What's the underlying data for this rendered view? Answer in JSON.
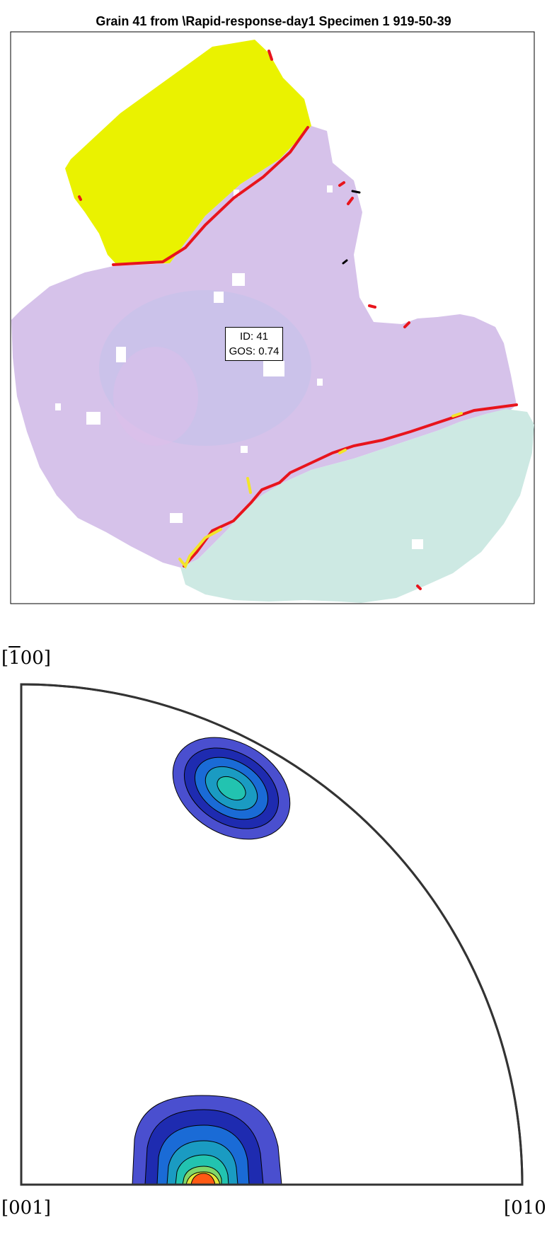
{
  "figure": {
    "title": "Grain 41 from \\Rapid-response-day1 Specimen 1 919-50-39"
  },
  "grain_label": {
    "id_text": "ID: 41",
    "gos_text": "GOS: 0.74"
  },
  "pole_figure": {
    "top_pole": "[̅100]",
    "top_pole_parts": {
      "bar_digit": "1",
      "rest": "00"
    },
    "left_pole": "[001]",
    "right_pole": "[010]"
  },
  "colors": {
    "grain_main": "#d6c2ea",
    "grain_yellow": "#eaf200",
    "grain_teal": "#cde9e3",
    "boundary_high": "#e8141c",
    "boundary_low": "#f2e52a",
    "contour_levels": [
      "#4a4fcf",
      "#1e2bb0",
      "#1a6bd6",
      "#1a9bc2",
      "#22c3b0",
      "#7fd76a",
      "#e6e83a",
      "#ff5a14"
    ]
  }
}
